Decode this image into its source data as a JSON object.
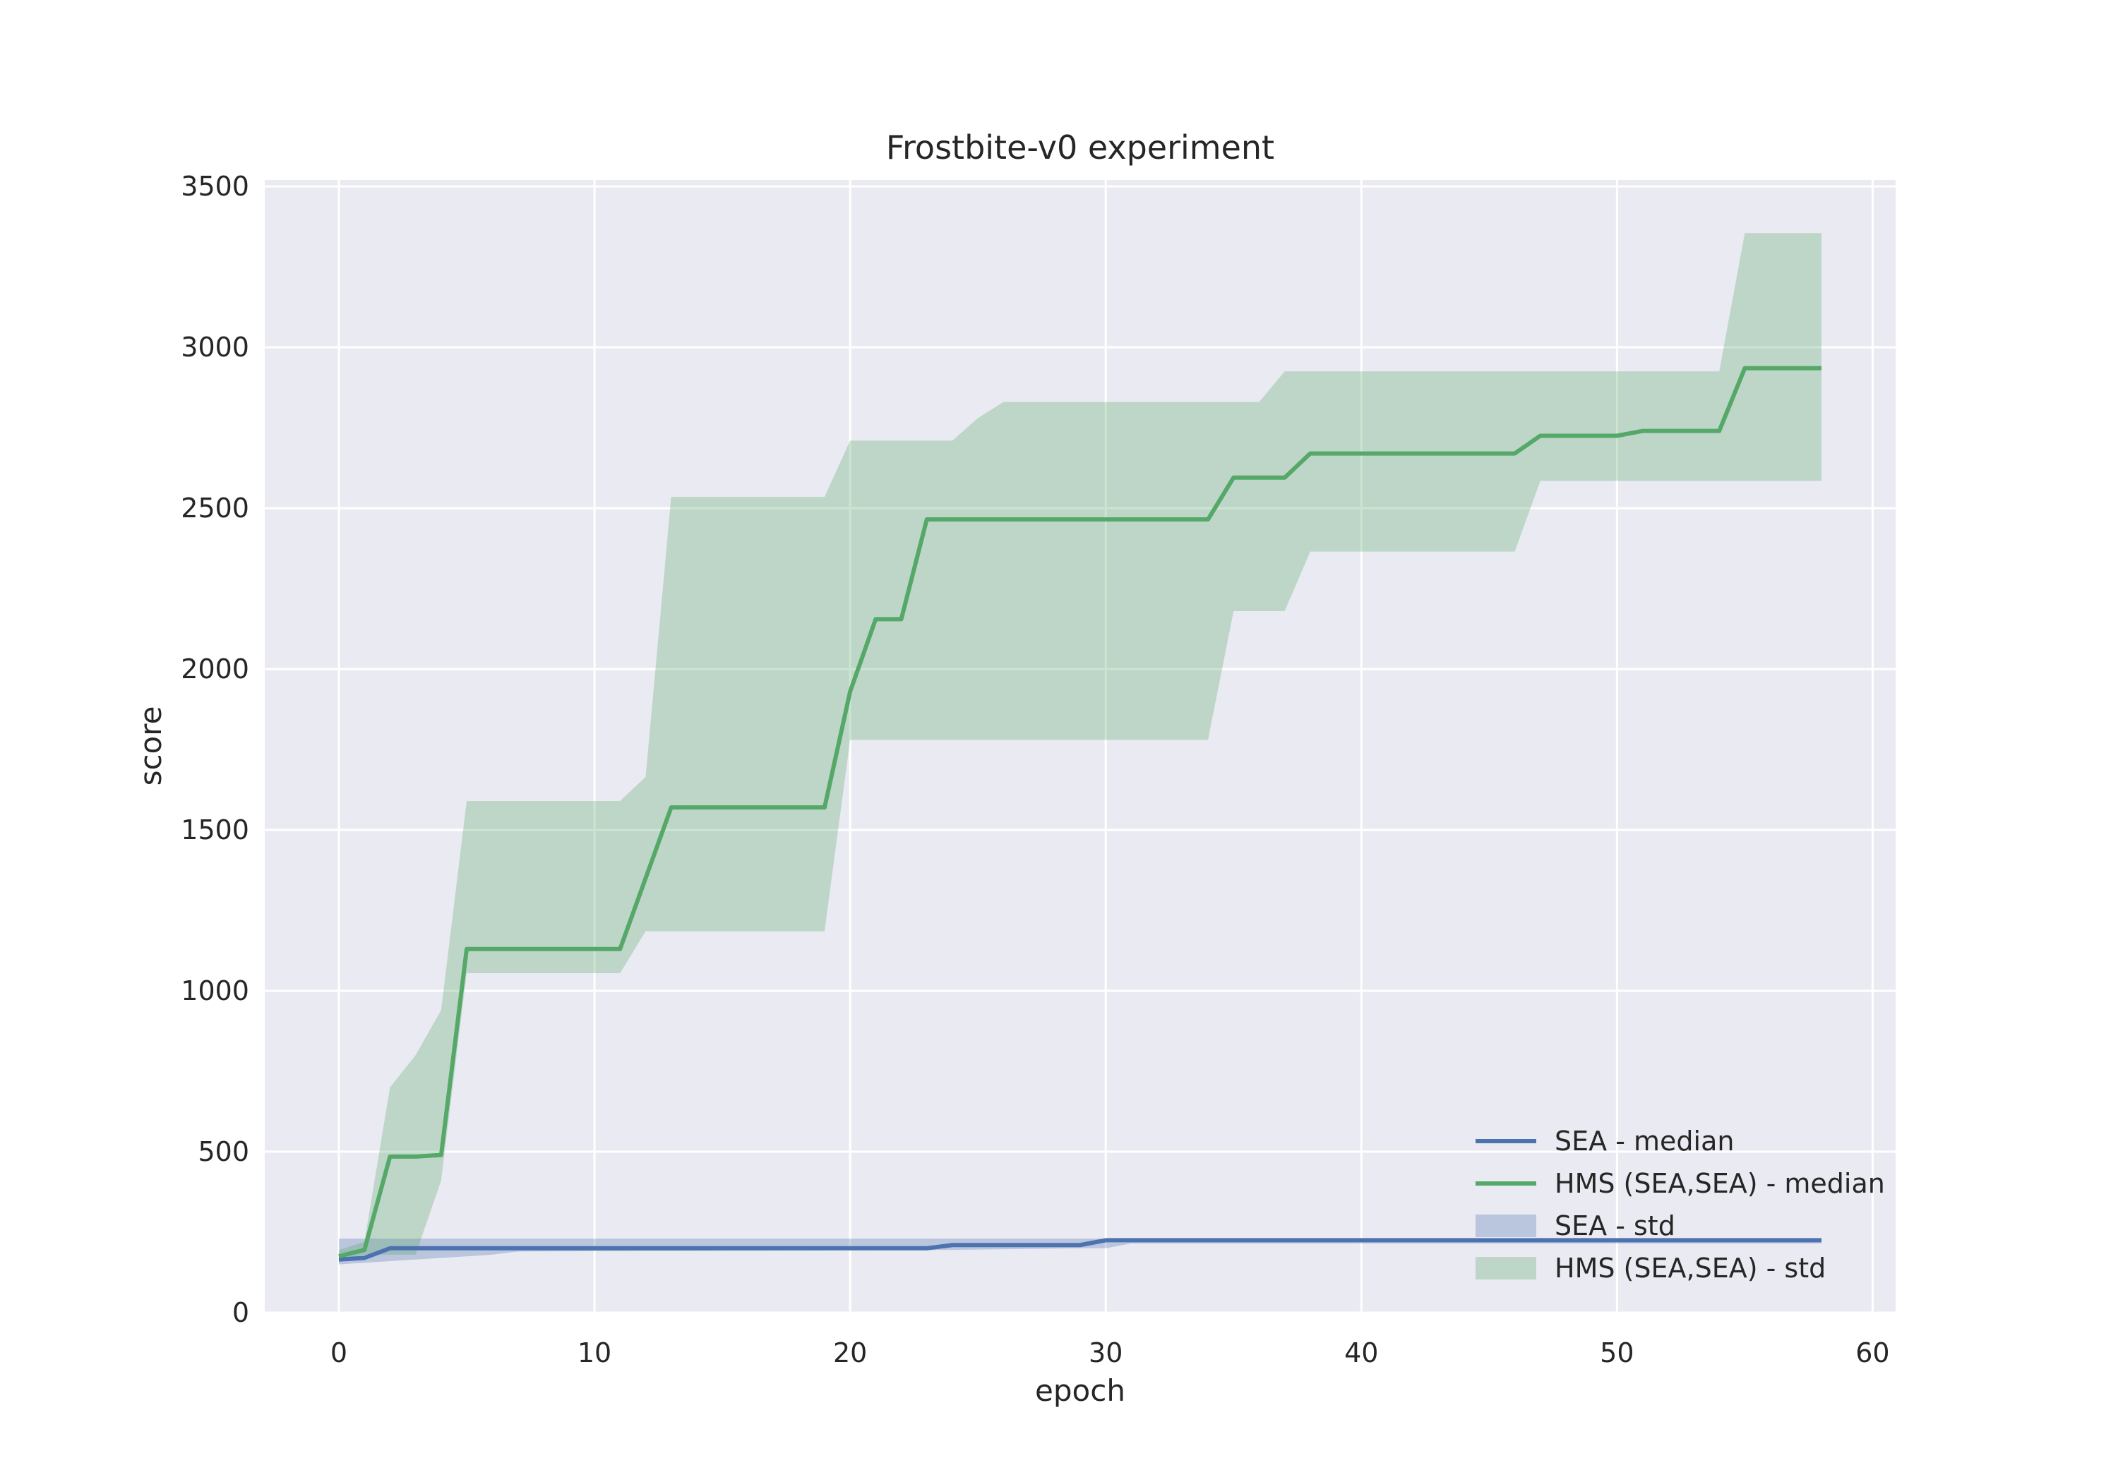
{
  "chart_data": {
    "type": "line",
    "title": "Frostbite-v0 experiment",
    "xlabel": "epoch",
    "ylabel": "score",
    "xlim": [
      -2.9,
      60.9
    ],
    "ylim": [
      0,
      3520
    ],
    "xticks": [
      0,
      10,
      20,
      30,
      40,
      50,
      60
    ],
    "yticks": [
      0,
      500,
      1000,
      1500,
      2000,
      2500,
      3000,
      3500
    ],
    "grid": true,
    "legend_position": "lower-right",
    "colors": {
      "plot_bg": "#eaeaf2",
      "sea": "#4c72b0",
      "hms": "#55a868"
    },
    "series": [
      {
        "name": "SEA - median",
        "kind": "line",
        "color": "#4c72b0",
        "x": [
          0,
          1,
          2,
          5,
          10,
          23,
          24,
          29,
          30,
          58
        ],
        "y": [
          165,
          170,
          200,
          200,
          200,
          200,
          210,
          210,
          225,
          225
        ]
      },
      {
        "name": "HMS (SEA,SEA) - median",
        "kind": "line",
        "color": "#55a868",
        "x": [
          0,
          1,
          2,
          3,
          4,
          5,
          6,
          11,
          12,
          13,
          19,
          20,
          21,
          22,
          23,
          34,
          35,
          37,
          38,
          46,
          47,
          50,
          51,
          54,
          55,
          58
        ],
        "y": [
          175,
          195,
          485,
          485,
          490,
          1130,
          1130,
          1130,
          1350,
          1570,
          1570,
          1930,
          2155,
          2155,
          2465,
          2465,
          2595,
          2595,
          2670,
          2670,
          2725,
          2725,
          2740,
          2740,
          2935,
          2935
        ]
      },
      {
        "name": "SEA - std",
        "kind": "band",
        "color": "#4c72b0",
        "x": [
          0,
          6,
          7,
          24,
          29,
          30,
          31,
          58
        ],
        "lower": [
          150,
          180,
          190,
          195,
          200,
          200,
          215,
          215
        ],
        "upper": [
          230,
          230,
          230,
          230,
          230,
          230,
          230,
          230
        ]
      },
      {
        "name": "HMS (SEA,SEA) - std",
        "kind": "band",
        "color": "#55a868",
        "x": [
          0,
          1,
          2,
          3,
          4,
          5,
          11,
          12,
          13,
          19,
          20,
          23,
          24,
          25,
          26,
          34,
          35,
          36,
          37,
          38,
          46,
          47,
          54,
          55,
          58
        ],
        "lower": [
          165,
          180,
          180,
          180,
          410,
          1055,
          1055,
          1185,
          1185,
          1185,
          1780,
          1780,
          1780,
          1780,
          1780,
          1780,
          2180,
          2180,
          2180,
          2365,
          2365,
          2585,
          2585,
          2585,
          2585
        ],
        "upper": [
          195,
          220,
          700,
          800,
          940,
          1590,
          1590,
          1665,
          2535,
          2535,
          2710,
          2710,
          2710,
          2780,
          2830,
          2830,
          2830,
          2830,
          2925,
          2925,
          2925,
          2925,
          2925,
          3355,
          3355
        ]
      }
    ]
  }
}
